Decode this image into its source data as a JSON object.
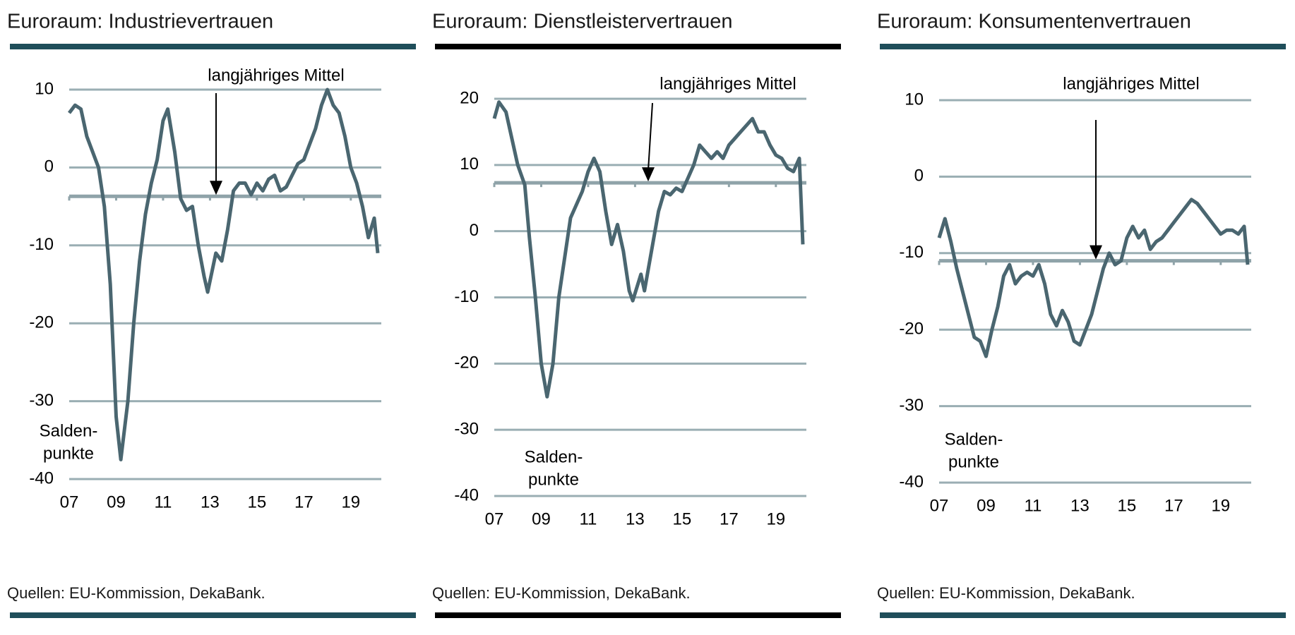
{
  "chart_data": [
    {
      "type": "line",
      "title": "Euroraum: Industrievertrauen",
      "source": "Quellen: EU-Kommission, DekaBank.",
      "annotation": "langjähriges Mittel",
      "unit_label": [
        "Salden-",
        "punkte"
      ],
      "x": [
        2007.0,
        2007.25,
        2007.5,
        2007.75,
        2008.0,
        2008.25,
        2008.5,
        2008.75,
        2009.0,
        2009.2,
        2009.5,
        2009.75,
        2010.0,
        2010.25,
        2010.5,
        2010.75,
        2011.0,
        2011.2,
        2011.5,
        2011.75,
        2012.0,
        2012.25,
        2012.5,
        2012.75,
        2012.9,
        2013.25,
        2013.5,
        2013.75,
        2014.0,
        2014.25,
        2014.5,
        2014.75,
        2015.0,
        2015.25,
        2015.5,
        2015.75,
        2016.0,
        2016.25,
        2016.5,
        2016.75,
        2017.0,
        2017.25,
        2017.5,
        2017.75,
        2018.0,
        2018.25,
        2018.5,
        2018.75,
        2019.0,
        2019.25,
        2019.5,
        2019.75,
        2020.0,
        2020.15
      ],
      "values": [
        7,
        8,
        7.5,
        4,
        2,
        0,
        -5,
        -15,
        -32,
        -37.5,
        -30,
        -20,
        -12,
        -6,
        -2,
        1,
        6,
        7.5,
        2,
        -4,
        -5.5,
        -5,
        -10,
        -14,
        -16,
        -11,
        -12,
        -8,
        -3,
        -2,
        -2,
        -3.5,
        -2,
        -3,
        -1.5,
        -1,
        -3,
        -2.5,
        -1,
        0.5,
        1,
        3,
        5,
        8,
        10,
        8,
        7,
        4,
        0,
        -2,
        -5,
        -9,
        -6.5,
        -11
      ],
      "color": "#4a6670",
      "mean": -3.7,
      "mean_color": "#8fa3a9",
      "bar_color": "#1f4e5a",
      "grid": true,
      "ylim": [
        -40,
        10
      ],
      "yticks": [
        -40,
        -30,
        -20,
        -10,
        0,
        10
      ],
      "xlim": [
        2007,
        2020.3
      ],
      "xticks": [
        {
          "value": 2007,
          "label": "07"
        },
        {
          "value": 2009,
          "label": "09"
        },
        {
          "value": 2011,
          "label": "11"
        },
        {
          "value": 2013,
          "label": "13"
        },
        {
          "value": 2015,
          "label": "15"
        },
        {
          "value": 2017,
          "label": "17"
        },
        {
          "value": 2019,
          "label": "19"
        }
      ]
    },
    {
      "type": "line",
      "title": "Euroraum: Dienstleistervertrauen",
      "source": "Quellen: EU-Kommission, DekaBank.",
      "annotation": "langjähriges Mittel",
      "unit_label": [
        "Salden-",
        "punkte"
      ],
      "x": [
        2007.0,
        2007.2,
        2007.5,
        2007.75,
        2008.0,
        2008.3,
        2008.5,
        2008.75,
        2009.0,
        2009.25,
        2009.5,
        2009.75,
        2010.0,
        2010.25,
        2010.5,
        2010.75,
        2011.0,
        2011.25,
        2011.5,
        2011.75,
        2012.0,
        2012.25,
        2012.5,
        2012.75,
        2012.9,
        2013.25,
        2013.4,
        2013.75,
        2014.0,
        2014.25,
        2014.5,
        2014.75,
        2015.0,
        2015.25,
        2015.5,
        2015.75,
        2016.0,
        2016.25,
        2016.5,
        2016.75,
        2017.0,
        2017.25,
        2017.5,
        2017.75,
        2018.0,
        2018.25,
        2018.5,
        2018.75,
        2019.0,
        2019.25,
        2019.5,
        2019.75,
        2020.0,
        2020.15
      ],
      "values": [
        17,
        19.5,
        18,
        14,
        10,
        7,
        -1,
        -10,
        -20,
        -25,
        -20,
        -10,
        -4,
        2,
        4,
        6,
        9,
        11,
        9,
        3,
        -2,
        1,
        -3,
        -9,
        -10.5,
        -6.5,
        -9,
        -2,
        3,
        6,
        5.5,
        6.5,
        6,
        8,
        10,
        13,
        12,
        11,
        12,
        11,
        13,
        14,
        15,
        16,
        17,
        15,
        15,
        13,
        11.5,
        11,
        9.5,
        9,
        11,
        -2
      ],
      "color": "#4a6670",
      "mean": 7.3,
      "mean_color": "#8fa3a9",
      "bar_color": "#000000",
      "grid": true,
      "ylim": [
        -40,
        20
      ],
      "yticks": [
        -40,
        -30,
        -20,
        -10,
        0,
        10,
        20
      ],
      "xlim": [
        2007,
        2020.3
      ],
      "xticks": [
        {
          "value": 2007,
          "label": "07"
        },
        {
          "value": 2009,
          "label": "09"
        },
        {
          "value": 2011,
          "label": "11"
        },
        {
          "value": 2013,
          "label": "13"
        },
        {
          "value": 2015,
          "label": "15"
        },
        {
          "value": 2017,
          "label": "17"
        },
        {
          "value": 2019,
          "label": "19"
        }
      ]
    },
    {
      "type": "line",
      "title": "Euroraum: Konsumentenvertrauen",
      "source": "Quellen: EU-Kommission, DekaBank.",
      "annotation": "langjähriges Mittel",
      "unit_label": [
        "Salden-",
        "punkte"
      ],
      "x": [
        2007.0,
        2007.25,
        2007.5,
        2007.75,
        2008.0,
        2008.25,
        2008.5,
        2008.75,
        2009.0,
        2009.25,
        2009.5,
        2009.75,
        2010.0,
        2010.25,
        2010.5,
        2010.75,
        2011.0,
        2011.25,
        2011.5,
        2011.75,
        2012.0,
        2012.25,
        2012.5,
        2012.75,
        2013.0,
        2013.25,
        2013.5,
        2013.75,
        2014.0,
        2014.25,
        2014.5,
        2014.75,
        2015.0,
        2015.25,
        2015.5,
        2015.75,
        2016.0,
        2016.25,
        2016.5,
        2016.75,
        2017.0,
        2017.25,
        2017.5,
        2017.75,
        2018.0,
        2018.25,
        2018.5,
        2018.75,
        2019.0,
        2019.25,
        2019.5,
        2019.75,
        2020.0,
        2020.15
      ],
      "values": [
        -8,
        -5.5,
        -8.5,
        -12,
        -15,
        -18,
        -21,
        -21.5,
        -23.5,
        -20,
        -17,
        -13,
        -11.5,
        -14,
        -13,
        -12.5,
        -13,
        -11.5,
        -14,
        -18,
        -19.5,
        -17.5,
        -19,
        -21.5,
        -22,
        -20,
        -18,
        -15,
        -12,
        -10,
        -11.5,
        -11,
        -8,
        -6.5,
        -8,
        -7,
        -9.5,
        -8.5,
        -8,
        -7,
        -6,
        -5,
        -4,
        -3,
        -3.5,
        -4.5,
        -5.5,
        -6.5,
        -7.5,
        -7,
        -7,
        -7.5,
        -6.5,
        -11.5
      ],
      "color": "#4a6670",
      "mean": -11,
      "mean_color": "#8fa3a9",
      "bar_color": "#1f4e5a",
      "grid": true,
      "ylim": [
        -40,
        10
      ],
      "yticks": [
        -40,
        -30,
        -20,
        -10,
        0,
        10
      ],
      "xlim": [
        2007,
        2020.3
      ],
      "xticks": [
        {
          "value": 2007,
          "label": "07"
        },
        {
          "value": 2009,
          "label": "09"
        },
        {
          "value": 2011,
          "label": "11"
        },
        {
          "value": 2013,
          "label": "13"
        },
        {
          "value": 2015,
          "label": "15"
        },
        {
          "value": 2017,
          "label": "17"
        },
        {
          "value": 2019,
          "label": "19"
        }
      ]
    }
  ]
}
